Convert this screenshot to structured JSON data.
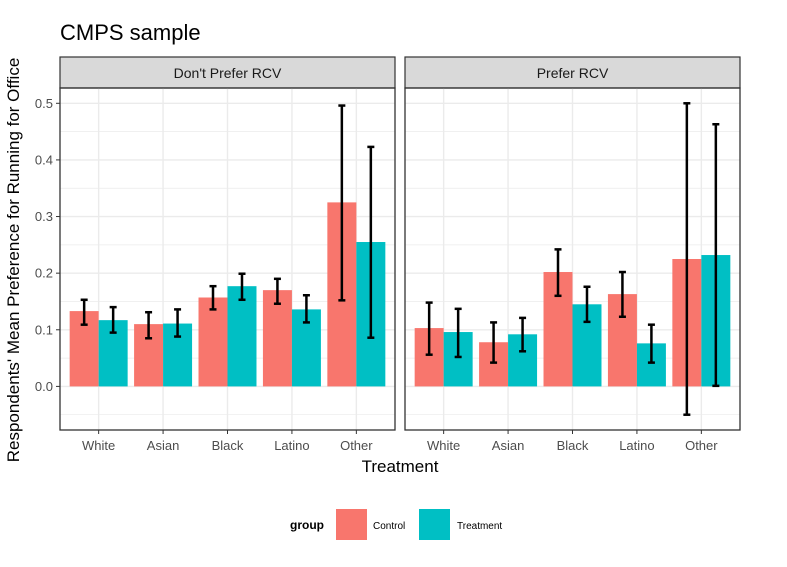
{
  "chart_data": {
    "type": "bar",
    "title": "CMPS sample",
    "xlabel": "Treatment",
    "ylabel": "Respondents' Mean Preference for Running for Office",
    "ylim": [
      -0.077,
      0.527
    ],
    "yticks": [
      "0.0",
      "0.1",
      "0.2",
      "0.3",
      "0.4",
      "0.5"
    ],
    "grid": true,
    "legend_position": "bottom",
    "legend_title": "group",
    "categories": [
      "White",
      "Asian",
      "Black",
      "Latino",
      "Other"
    ],
    "colors": {
      "Control": "#F8766D",
      "Treatment": "#00BFC4"
    },
    "panels": [
      {
        "label": "Don't Prefer RCV",
        "series": [
          {
            "name": "Control",
            "values": [
              0.133,
              0.11,
              0.157,
              0.17,
              0.325
            ],
            "lower": [
              0.109,
              0.085,
              0.136,
              0.146,
              0.152
            ],
            "upper": [
              0.153,
              0.131,
              0.177,
              0.19,
              0.496
            ]
          },
          {
            "name": "Treatment",
            "values": [
              0.117,
              0.111,
              0.177,
              0.136,
              0.255
            ],
            "lower": [
              0.095,
              0.088,
              0.153,
              0.113,
              0.086
            ],
            "upper": [
              0.14,
              0.136,
              0.199,
              0.161,
              0.423
            ]
          }
        ]
      },
      {
        "label": "Prefer RCV",
        "series": [
          {
            "name": "Control",
            "values": [
              0.103,
              0.078,
              0.202,
              0.163,
              0.225
            ],
            "lower": [
              0.056,
              0.042,
              0.16,
              0.123,
              -0.05
            ],
            "upper": [
              0.148,
              0.113,
              0.242,
              0.202,
              0.5
            ]
          },
          {
            "name": "Treatment",
            "values": [
              0.096,
              0.092,
              0.145,
              0.076,
              0.232
            ],
            "lower": [
              0.052,
              0.062,
              0.114,
              0.042,
              0.001
            ],
            "upper": [
              0.137,
              0.121,
              0.176,
              0.109,
              0.463
            ]
          }
        ]
      }
    ]
  }
}
